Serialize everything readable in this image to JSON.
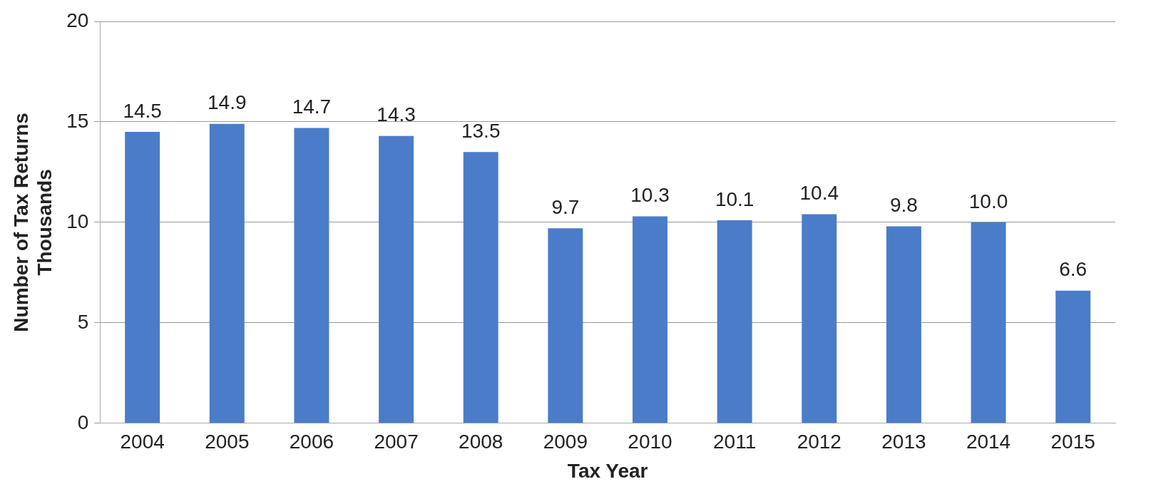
{
  "chart_data": {
    "type": "bar",
    "xlabel": "Tax Year",
    "ylabel": "Number of Tax Returns\nThousands",
    "categories": [
      "2004",
      "2005",
      "2006",
      "2007",
      "2008",
      "2009",
      "2010",
      "2011",
      "2012",
      "2013",
      "2014",
      "2015"
    ],
    "values": [
      14.5,
      14.9,
      14.7,
      14.3,
      13.5,
      9.7,
      10.3,
      10.1,
      10.4,
      9.8,
      10.0,
      6.6
    ],
    "value_labels": [
      "14.5",
      "14.9",
      "14.7",
      "14.3",
      "13.5",
      "9.7",
      "10.3",
      "10.1",
      "10.4",
      "9.8",
      "10.0",
      "6.6"
    ],
    "color": "#4a7cc9",
    "ylim": [
      0,
      20
    ],
    "yticks": [
      0,
      5,
      10,
      15,
      20
    ],
    "grid": "y",
    "legend": false
  }
}
